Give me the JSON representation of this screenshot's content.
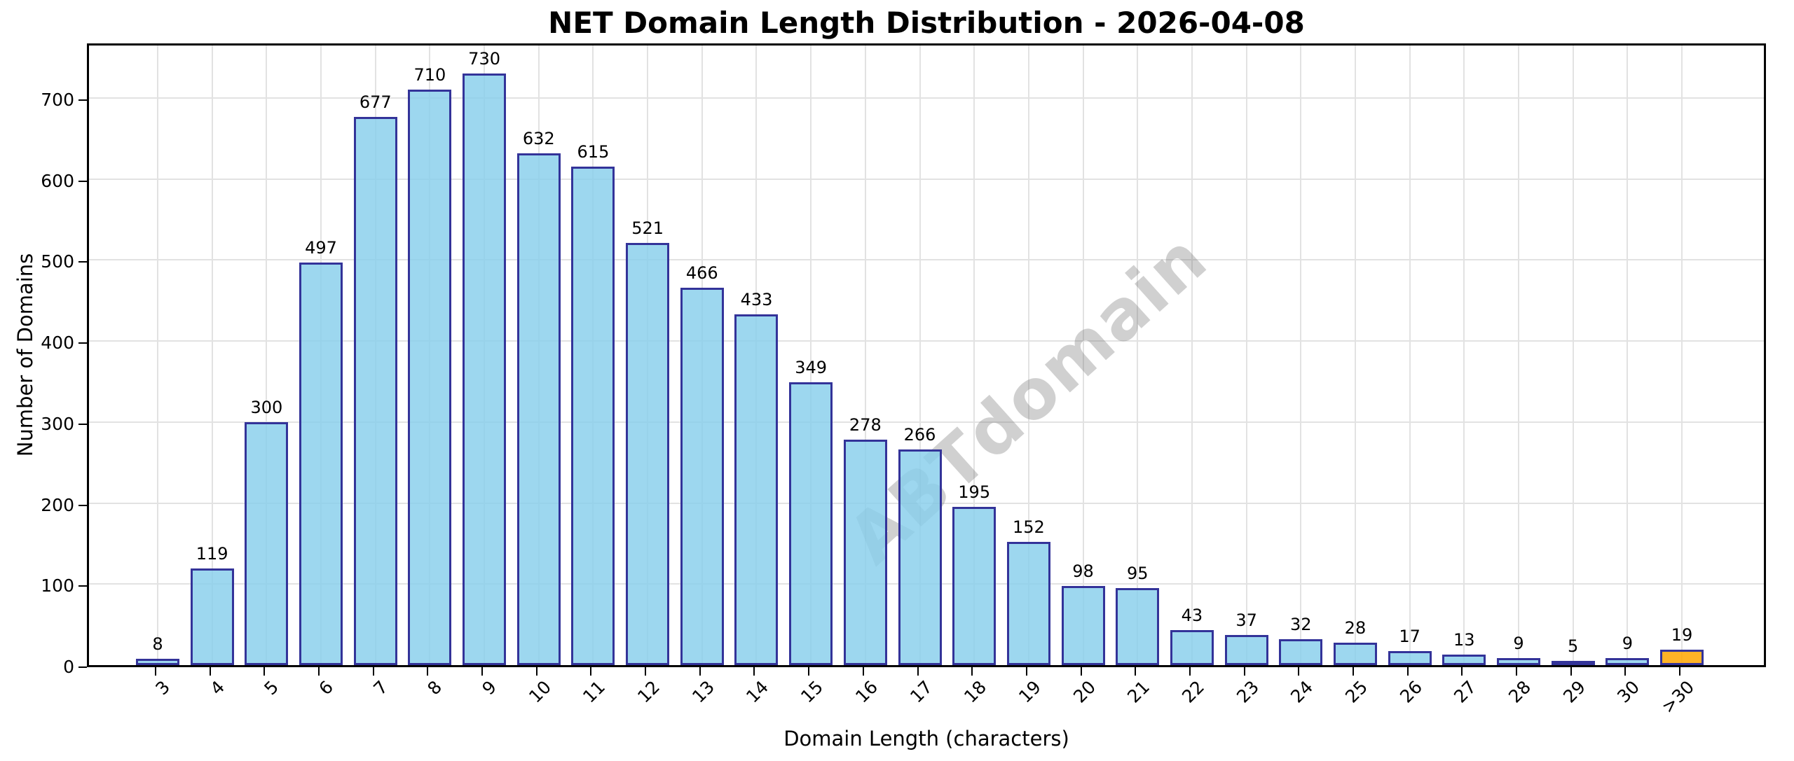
{
  "chart_data": {
    "type": "bar",
    "title": "NET Domain Length Distribution - 2026-04-08",
    "xlabel": "Domain Length (characters)",
    "ylabel": "Number of Domains",
    "categories": [
      "3",
      "4",
      "5",
      "6",
      "7",
      "8",
      "9",
      "10",
      "11",
      "12",
      "13",
      "14",
      "15",
      "16",
      "17",
      "18",
      "19",
      "20",
      "21",
      "22",
      "23",
      "24",
      "25",
      "26",
      "27",
      "28",
      "29",
      "30",
      ">30"
    ],
    "values": [
      8,
      119,
      300,
      497,
      677,
      710,
      730,
      632,
      615,
      521,
      466,
      433,
      349,
      278,
      266,
      195,
      152,
      98,
      95,
      43,
      37,
      32,
      28,
      17,
      13,
      9,
      5,
      9,
      19
    ],
    "bar_labels_shown": true,
    "highlight_index": 28,
    "highlight_category": ">30",
    "yticks": [
      0,
      100,
      200,
      300,
      400,
      500,
      600,
      700
    ],
    "ylim": [
      0,
      770
    ],
    "grid": true,
    "legend_position": "none",
    "watermark": "ABTdomain",
    "colors": {
      "bar_fill": "#9FD8EF",
      "bar_edge": "#333399",
      "highlight_fill": "#FFB733",
      "grid": "#E2E2E2",
      "axis": "#000000",
      "text": "#000000",
      "watermark": "#D1D1D1",
      "background": "#FFFFFF"
    }
  }
}
